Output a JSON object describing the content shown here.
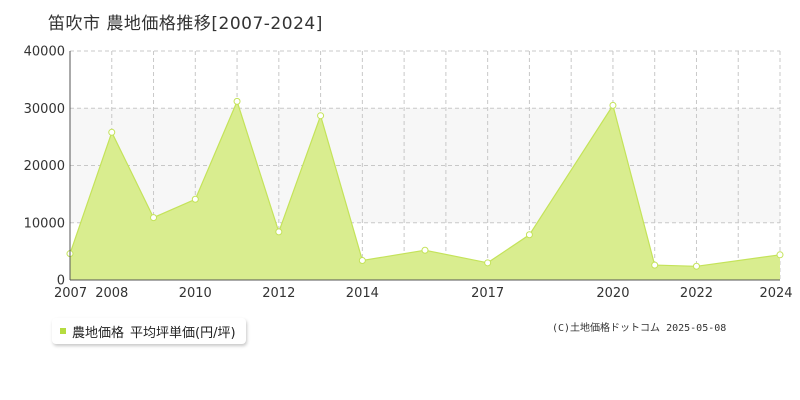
{
  "header": {
    "title": "笛吹市  農地価格推移[2007-2024]"
  },
  "legend": {
    "series_name": "農地価格",
    "unit_label": "平均坪単価(円/坪)"
  },
  "footer": {
    "credit": "(C)土地価格ドットコム 2025-05-08"
  },
  "chart_data": {
    "type": "area",
    "title": "笛吹市  農地価格推移[2007-2024]",
    "xlabel": "",
    "ylabel": "",
    "x": [
      2007,
      2008,
      2009,
      2010,
      2011,
      2012,
      2013,
      2014,
      2015,
      2016,
      2017,
      2018,
      2019,
      2020,
      2021,
      2022,
      2023,
      2024
    ],
    "xticks": [
      2007,
      2008,
      2010,
      2012,
      2014,
      2017,
      2020,
      2022,
      2024
    ],
    "yticks": [
      0,
      10000,
      20000,
      30000,
      40000
    ],
    "xlim": [
      2007,
      2024
    ],
    "ylim": [
      0,
      40000
    ],
    "grid": true,
    "legend_position": "bottom-left",
    "series": [
      {
        "name": "農地価格 平均坪単価(円/坪)",
        "values": [
          4600,
          25800,
          10900,
          14100,
          31200,
          8400,
          28700,
          3400,
          5200,
          3000,
          7900,
          30500,
          2600,
          2400,
          4400
        ],
        "x": [
          2007,
          2008,
          2009,
          2010,
          2011,
          2012,
          2013,
          2014,
          2015.5,
          2017,
          2018,
          2020,
          2021,
          2022,
          2024
        ]
      }
    ],
    "colors": {
      "fill": "#d9ed8f",
      "line": "#c4e35a",
      "band": "#f7f7f7",
      "grid": "#c8c8c8",
      "marker_fill": "#ffffff",
      "legend_swatch": "#b5dc40"
    }
  }
}
